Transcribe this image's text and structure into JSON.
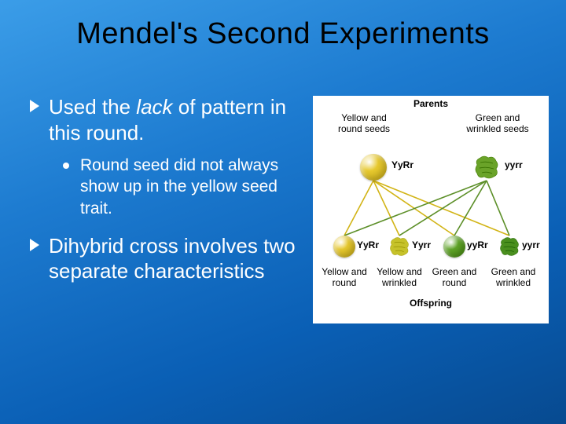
{
  "title": "Mendel's Second Experiments",
  "bullets": {
    "b1_pre": "Used the ",
    "b1_italic": "lack",
    "b1_post": " of pattern in this round.",
    "b1_sub": "Round seed did not always show up in the yellow seed trait.",
    "b2": "Dihybrid cross involves two separate characteristics"
  },
  "diagram": {
    "parents_label": "Parents",
    "offspring_label": "Offspring",
    "parent_left": {
      "desc": "Yellow and round seeds",
      "geno": "YyRr",
      "color": "#e7c92f"
    },
    "parent_right": {
      "desc": "Green and wrinkled seeds",
      "geno": "yyrr",
      "color": "#6aa329"
    },
    "offspring": [
      {
        "desc": "Yellow and round",
        "geno": "YyRr",
        "color": "#e7c92f",
        "wrinkled": false
      },
      {
        "desc": "Yellow and wrinkled",
        "geno": "Yyrr",
        "color": "#c6c22a",
        "wrinkled": true
      },
      {
        "desc": "Green and round",
        "geno": "yyRr",
        "color": "#5fa428",
        "wrinkled": false
      },
      {
        "desc": "Green and wrinkled",
        "geno": "yyrr",
        "color": "#4a8f1e",
        "wrinkled": true
      }
    ],
    "colors": {
      "line_yellow": "#d2b416",
      "line_green": "#5c8f28"
    }
  }
}
